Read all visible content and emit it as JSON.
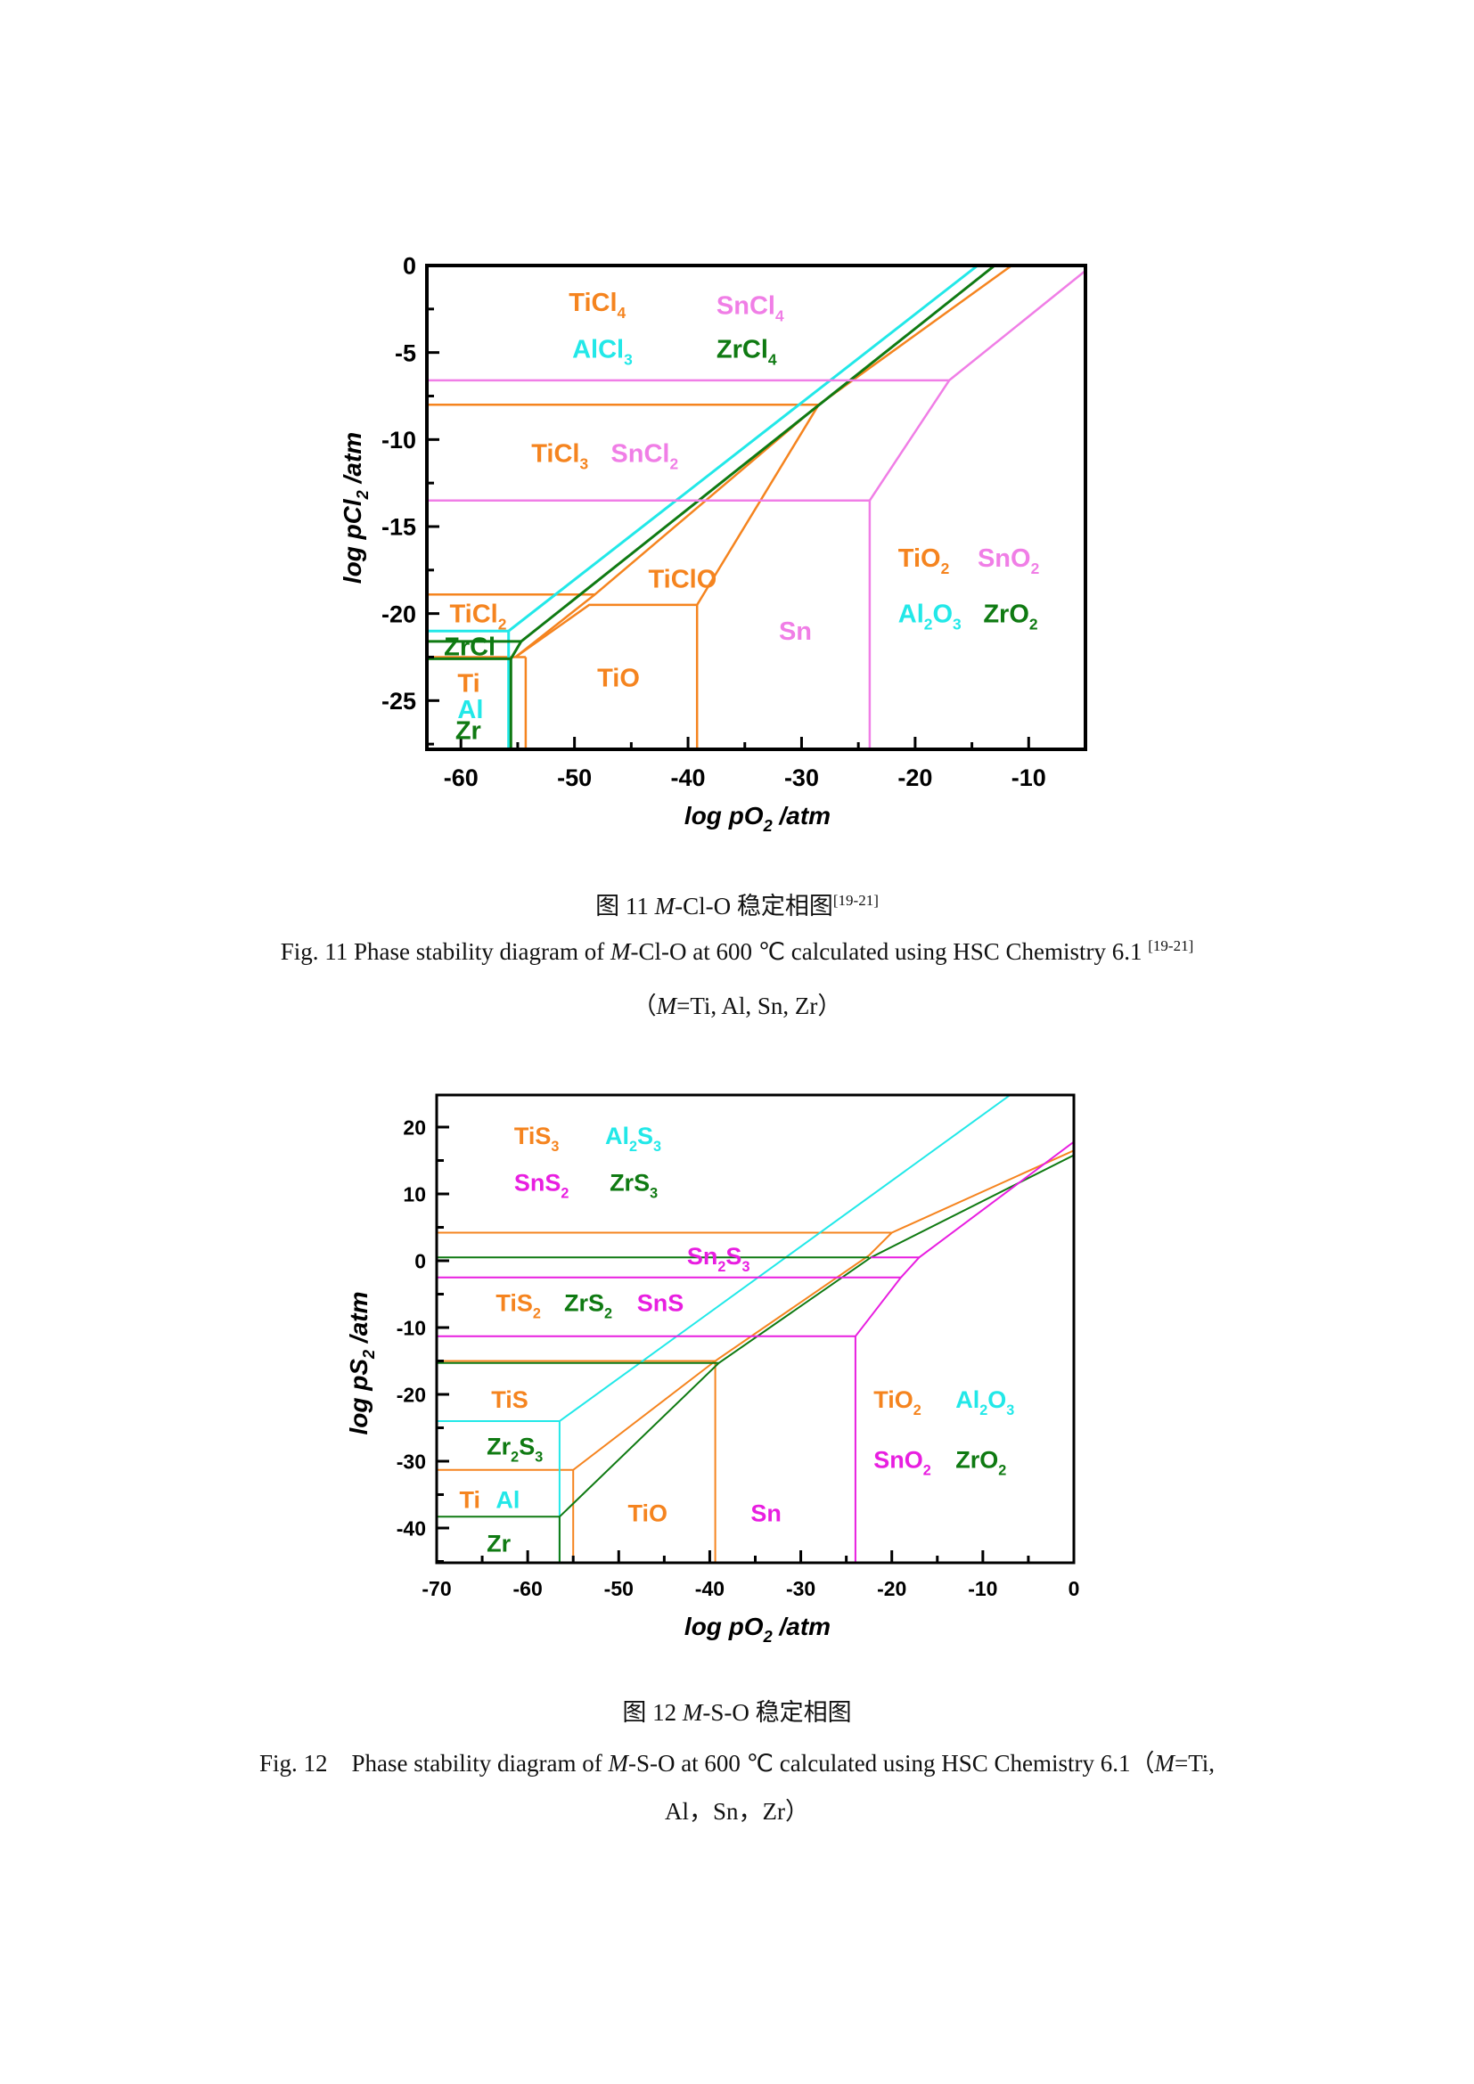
{
  "colors": {
    "Ti": "#F5841F",
    "Al": "#22E8E8",
    "Sn1": "#F07EE6",
    "Sn2": "#E81EE0",
    "Zr": "#0F7A12",
    "axis": "#000000"
  },
  "figure11": {
    "caption_cn": {
      "prefix": "图 11 ",
      "italic": "M",
      "rest": "-Cl-O 稳定相图",
      "ref": "[19-21]"
    },
    "caption_en": {
      "prefix": "Fig. 11 Phase stability diagram of ",
      "italic": "M",
      "rest": "-Cl-O at 600 ℃ calculated using HSC Chemistry 6.1 ",
      "ref": "[19-21]"
    },
    "caption_en2": {
      "open": "（",
      "italic": "M",
      "rest": "=Ti, Al, Sn, Zr）"
    }
  },
  "figure12": {
    "caption_cn": {
      "prefix": "图 12 ",
      "italic": "M",
      "rest": "-S-O 稳定相图"
    },
    "caption_en": {
      "prefix": "Fig. 12    Phase stability diagram of ",
      "italic": "M",
      "rest": "-S-O at 600 ℃ calculated using HSC Chemistry 6.1（",
      "italic2": "M",
      "rest2": "=Ti,"
    },
    "caption_en2": {
      "text": "Al，Sn，Zr）"
    }
  },
  "chart_data": [
    {
      "type": "line",
      "title": "Phase stability diagram of M-Cl-O at 600 °C",
      "xlabel": "log pO2 /atm",
      "ylabel": "log pCl2 /atm",
      "xlim": [
        -63,
        -5
      ],
      "ylim": [
        -27.8,
        0
      ],
      "xticks": [
        -60,
        -50,
        -40,
        -30,
        -20,
        -10
      ],
      "yticks": [
        0,
        -5,
        -10,
        -15,
        -20,
        -25
      ],
      "grid": false,
      "series": [
        {
          "name": "Ti boundaries",
          "color_key": "Ti",
          "width": 2.5,
          "segments": [
            [
              [
                -63,
                -8.0
              ],
              [
                -28.5,
                -8.0
              ]
            ],
            [
              [
                -63,
                -18.9
              ],
              [
                -48.2,
                -18.9
              ]
            ],
            [
              [
                -63,
                -22.5
              ],
              [
                -55.2,
                -22.5
              ]
            ],
            [
              [
                -55.2,
                -22.5
              ],
              [
                -48.7,
                -19.5
              ],
              [
                -39.2,
                -19.5
              ],
              [
                -28.5,
                -8.0
              ],
              [
                -11.5,
                0
              ]
            ],
            [
              [
                -55.2,
                -22.5
              ],
              [
                -48.2,
                -18.9
              ],
              [
                -28.5,
                -8.0
              ]
            ],
            [
              [
                -55.2,
                -22.5
              ],
              [
                -54.3,
                -22.5
              ]
            ],
            [
              [
                -54.3,
                -22.5
              ],
              [
                -54.3,
                -27.8
              ]
            ],
            [
              [
                -39.2,
                -19.5
              ],
              [
                -39.2,
                -27.8
              ]
            ]
          ]
        },
        {
          "name": "Al boundaries",
          "color_key": "Al",
          "width": 3,
          "segments": [
            [
              [
                -63,
                -21.0
              ],
              [
                -55.8,
                -21.0
              ],
              [
                -14.5,
                0
              ]
            ],
            [
              [
                -55.8,
                -21.0
              ],
              [
                -55.8,
                -27.8
              ]
            ]
          ]
        },
        {
          "name": "Zr boundaries",
          "color_key": "Zr",
          "width": 3,
          "segments": [
            [
              [
                -63,
                -21.6
              ],
              [
                -54.7,
                -21.6
              ],
              [
                -13.0,
                0
              ]
            ],
            [
              [
                -63,
                -22.6
              ],
              [
                -55.6,
                -22.6
              ],
              [
                -54.7,
                -21.6
              ]
            ],
            [
              [
                -55.6,
                -22.6
              ],
              [
                -55.6,
                -27.8
              ]
            ]
          ]
        },
        {
          "name": "Sn boundaries",
          "color_key": "Sn1",
          "width": 2.5,
          "segments": [
            [
              [
                -63,
                -6.6
              ],
              [
                -17.0,
                -6.6
              ],
              [
                -5.0,
                -0.3
              ]
            ],
            [
              [
                -63,
                -13.5
              ],
              [
                -24.0,
                -13.5
              ],
              [
                -17.0,
                -6.6
              ]
            ],
            [
              [
                -24.0,
                -13.5
              ],
              [
                -24.0,
                -27.8
              ]
            ]
          ]
        }
      ],
      "labels": [
        {
          "text": "TiCl",
          "sub": "4",
          "x": -50.5,
          "y": -2.6,
          "color_key": "Ti"
        },
        {
          "text": "SnCl",
          "sub": "4",
          "x": -37.5,
          "y": -2.8,
          "color_key": "Sn1"
        },
        {
          "text": "AlCl",
          "sub": "3",
          "x": -50.2,
          "y": -5.3,
          "color_key": "Al"
        },
        {
          "text": "ZrCl",
          "sub": "4",
          "x": -37.5,
          "y": -5.3,
          "color_key": "Zr"
        },
        {
          "text": "TiCl",
          "sub": "3",
          "x": -53.8,
          "y": -11.3,
          "color_key": "Ti"
        },
        {
          "text": "SnCl",
          "sub": "2",
          "x": -46.8,
          "y": -11.3,
          "color_key": "Sn1"
        },
        {
          "text": "TiClO",
          "sub": "",
          "x": -43.5,
          "y": -18.5,
          "color_key": "Ti"
        },
        {
          "text": "TiO",
          "sub": "2",
          "x": -21.5,
          "y": -17.3,
          "color_key": "Ti"
        },
        {
          "text": "SnO",
          "sub": "2",
          "x": -14.5,
          "y": -17.3,
          "color_key": "Sn1"
        },
        {
          "text": "Al",
          "sub": "2",
          "sub2": "O",
          "sub3": "3",
          "x": -21.5,
          "y": -20.5,
          "color_key": "Al"
        },
        {
          "text": "ZrO",
          "sub": "2",
          "x": -14.0,
          "y": -20.5,
          "color_key": "Zr"
        },
        {
          "text": "TiCl",
          "sub": "2",
          "x": -61.0,
          "y": -20.5,
          "color_key": "Ti"
        },
        {
          "text": "ZrCl",
          "sub": "",
          "x": -61.5,
          "y": -22.4,
          "color_key": "Zr"
        },
        {
          "text": "Sn",
          "sub": "",
          "x": -32.0,
          "y": -21.5,
          "color_key": "Sn1"
        },
        {
          "text": "TiO",
          "sub": "",
          "x": -48.0,
          "y": -24.2,
          "color_key": "Ti"
        },
        {
          "text": "Ti",
          "sub": "",
          "x": -60.3,
          "y": -24.5,
          "color_key": "Ti"
        },
        {
          "text": "Al",
          "sub": "",
          "x": -60.3,
          "y": -26.0,
          "color_key": "Al"
        },
        {
          "text": "Zr",
          "sub": "",
          "x": -60.5,
          "y": -27.2,
          "color_key": "Zr"
        }
      ]
    },
    {
      "type": "line",
      "title": "Phase stability diagram of M-S-O at 600 °C",
      "xlabel": "log pO2 /atm",
      "ylabel": "log pS2 /atm",
      "xlim": [
        -70,
        0
      ],
      "ylim": [
        -45.2,
        24.8
      ],
      "xticks": [
        -70,
        -60,
        -50,
        -40,
        -30,
        -20,
        -10,
        0
      ],
      "yticks": [
        20,
        10,
        0,
        -10,
        -20,
        -30,
        -40
      ],
      "grid": false,
      "series": [
        {
          "name": "Ti boundaries",
          "color_key": "Ti",
          "width": 2,
          "segments": [
            [
              [
                -70,
                4.2
              ],
              [
                -20.0,
                4.2
              ],
              [
                0,
                16.5
              ]
            ],
            [
              [
                -70,
                -15.0
              ],
              [
                -39.4,
                -15.0
              ]
            ],
            [
              [
                -70,
                -31.3
              ],
              [
                -55.0,
                -31.3
              ],
              [
                -39.4,
                -15.0
              ],
              [
                -22.5,
                0.8
              ],
              [
                -20.0,
                4.2
              ]
            ],
            [
              [
                -55.0,
                -31.3
              ],
              [
                -55.0,
                -45.2
              ]
            ],
            [
              [
                -39.4,
                -15.0
              ],
              [
                -39.4,
                -45.2
              ]
            ]
          ]
        },
        {
          "name": "Al boundaries",
          "color_key": "Al",
          "width": 2,
          "segments": [
            [
              [
                -70,
                -24.0
              ],
              [
                -56.5,
                -24.0
              ],
              [
                -7.0,
                24.8
              ]
            ],
            [
              [
                -56.5,
                -24.0
              ],
              [
                -56.5,
                -45.2
              ]
            ]
          ]
        },
        {
          "name": "Zr boundaries",
          "color_key": "Zr",
          "width": 2,
          "segments": [
            [
              [
                -70,
                0.5
              ],
              [
                -22.5,
                0.5
              ]
            ],
            [
              [
                -70,
                -15.3
              ],
              [
                -39.0,
                -15.3
              ]
            ],
            [
              [
                -70,
                -38.3
              ],
              [
                -56.5,
                -38.3
              ],
              [
                -39.0,
                -15.3
              ],
              [
                -22.3,
                0.5
              ],
              [
                0,
                15.8
              ]
            ],
            [
              [
                -56.5,
                -38.3
              ],
              [
                -56.5,
                -45.2
              ]
            ]
          ]
        },
        {
          "name": "Sn boundaries",
          "color_key": "Sn2",
          "width": 2,
          "segments": [
            [
              [
                -70,
                -2.5
              ],
              [
                -19.0,
                -2.5
              ]
            ],
            [
              [
                -70,
                -11.3
              ],
              [
                -24.0,
                -11.3
              ],
              [
                -19.0,
                -2.5
              ],
              [
                -17.0,
                0.5
              ],
              [
                0,
                17.8
              ]
            ],
            [
              [
                -22.3,
                0.5
              ],
              [
                -17.0,
                0.5
              ]
            ],
            [
              [
                -24.0,
                -11.3
              ],
              [
                -24.0,
                -45.2
              ]
            ]
          ]
        }
      ],
      "labels": [
        {
          "text": "TiS",
          "sub": "3",
          "x": -61.5,
          "y": 17.5,
          "color_key": "Ti"
        },
        {
          "text": "Al",
          "sub": "2",
          "sub2": "S",
          "sub3": "3",
          "x": -51.5,
          "y": 17.5,
          "color_key": "Al"
        },
        {
          "text": "SnS",
          "sub": "2",
          "x": -61.5,
          "y": 10.5,
          "color_key": "Sn2"
        },
        {
          "text": "ZrS",
          "sub": "3",
          "x": -51.0,
          "y": 10.5,
          "color_key": "Zr"
        },
        {
          "text": "Sn",
          "sub": "2",
          "sub2": "S",
          "sub3": "3",
          "x": -42.5,
          "y": -0.5,
          "color_key": "Sn2"
        },
        {
          "text": "TiS",
          "sub": "2",
          "x": -63.5,
          "y": -7.5,
          "color_key": "Ti"
        },
        {
          "text": "ZrS",
          "sub": "2",
          "x": -56.0,
          "y": -7.5,
          "color_key": "Zr"
        },
        {
          "text": "SnS",
          "sub": "",
          "x": -48.0,
          "y": -7.5,
          "color_key": "Sn2"
        },
        {
          "text": "TiS",
          "sub": "",
          "x": -64.0,
          "y": -22.0,
          "color_key": "Ti"
        },
        {
          "text": "Zr",
          "sub": "2",
          "sub2": "S",
          "sub3": "3",
          "x": -64.5,
          "y": -29.0,
          "color_key": "Zr"
        },
        {
          "text": "Ti",
          "sub": "",
          "x": -67.5,
          "y": -37.0,
          "color_key": "Ti"
        },
        {
          "text": "Al",
          "sub": "",
          "x": -63.5,
          "y": -37.0,
          "color_key": "Al"
        },
        {
          "text": "Zr",
          "sub": "",
          "x": -64.5,
          "y": -43.5,
          "color_key": "Zr"
        },
        {
          "text": "TiO",
          "sub": "",
          "x": -49.0,
          "y": -39.0,
          "color_key": "Ti"
        },
        {
          "text": "Sn",
          "sub": "",
          "x": -35.5,
          "y": -39.0,
          "color_key": "Sn2"
        },
        {
          "text": "TiO",
          "sub": "2",
          "x": -22.0,
          "y": -22.0,
          "color_key": "Ti"
        },
        {
          "text": "Al",
          "sub": "2",
          "sub2": "O",
          "sub3": "3",
          "x": -13.0,
          "y": -22.0,
          "color_key": "Al"
        },
        {
          "text": "SnO",
          "sub": "2",
          "x": -22.0,
          "y": -31.0,
          "color_key": "Sn2"
        },
        {
          "text": "ZrO",
          "sub": "2",
          "x": -13.0,
          "y": -31.0,
          "color_key": "Zr"
        }
      ]
    }
  ]
}
